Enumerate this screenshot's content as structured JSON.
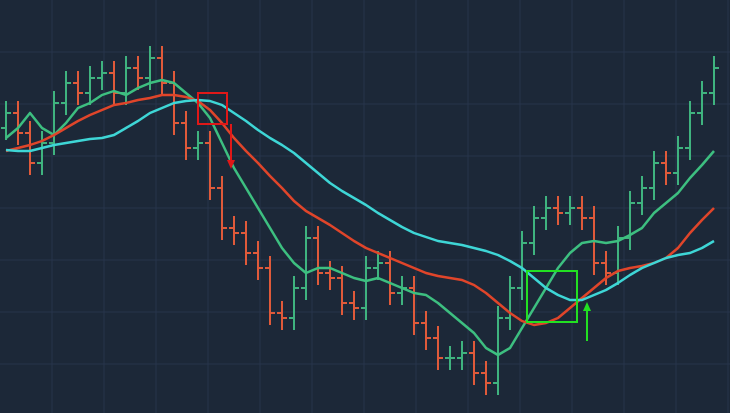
{
  "chart_data": {
    "type": "ohlc",
    "ylim": [
      0,
      413
    ],
    "grid": true,
    "up_color": "#3fb37f",
    "down_color": "#e05a3a",
    "open": [
      285,
      300,
      280,
      250,
      270,
      310,
      330,
      320,
      335,
      340,
      320,
      345,
      335,
      355,
      330,
      290,
      265,
      270,
      225,
      185,
      180,
      160,
      145,
      100,
      95,
      125,
      175,
      140,
      135,
      110,
      105,
      145,
      150,
      120,
      125,
      90,
      75,
      55,
      55,
      60,
      40,
      30,
      95,
      125,
      170,
      195,
      205,
      200,
      205,
      195,
      150,
      140,
      175,
      210,
      225,
      250,
      240,
      265,
      300,
      320
    ],
    "high": [
      312,
      312,
      292,
      282,
      322,
      342,
      342,
      347,
      352,
      352,
      357,
      357,
      367,
      367,
      342,
      302,
      282,
      282,
      237,
      197,
      192,
      172,
      157,
      112,
      137,
      187,
      187,
      152,
      147,
      122,
      157,
      162,
      162,
      137,
      137,
      102,
      87,
      67,
      72,
      72,
      52,
      107,
      137,
      182,
      207,
      217,
      217,
      217,
      217,
      207,
      162,
      187,
      222,
      237,
      262,
      262,
      277,
      312,
      332,
      357
    ],
    "low": [
      273,
      268,
      238,
      238,
      258,
      298,
      308,
      308,
      323,
      308,
      308,
      323,
      323,
      318,
      278,
      253,
      253,
      213,
      173,
      168,
      148,
      133,
      88,
      83,
      83,
      113,
      128,
      123,
      98,
      93,
      93,
      133,
      108,
      108,
      78,
      63,
      43,
      43,
      43,
      28,
      18,
      18,
      83,
      113,
      158,
      183,
      188,
      188,
      183,
      138,
      128,
      128,
      163,
      198,
      213,
      228,
      228,
      253,
      288,
      308
    ],
    "close": [
      300,
      280,
      250,
      270,
      310,
      330,
      320,
      335,
      340,
      320,
      345,
      335,
      355,
      330,
      290,
      265,
      270,
      225,
      185,
      180,
      160,
      145,
      100,
      95,
      125,
      175,
      140,
      135,
      110,
      105,
      145,
      150,
      120,
      125,
      90,
      75,
      55,
      55,
      60,
      40,
      30,
      95,
      125,
      170,
      195,
      205,
      200,
      205,
      195,
      150,
      140,
      175,
      210,
      225,
      250,
      240,
      265,
      300,
      320,
      345
    ],
    "series": [
      {
        "color": "#3dbf80",
        "values": [
          275,
          285,
          300,
          285,
          278,
          290,
          305,
          310,
          318,
          322,
          318,
          325,
          330,
          333,
          330,
          320,
          310,
          295,
          270,
          245,
          225,
          205,
          185,
          165,
          150,
          140,
          145,
          145,
          140,
          135,
          132,
          135,
          130,
          125,
          120,
          118,
          110,
          100,
          90,
          80,
          65,
          58,
          65,
          85,
          105,
          125,
          145,
          160,
          170,
          172,
          170,
          172,
          178,
          185,
          200,
          210,
          220,
          235,
          248,
          262
        ]
      },
      {
        "color": "#e0452a",
        "values": [
          262,
          265,
          268,
          272,
          278,
          285,
          292,
          298,
          303,
          308,
          310,
          313,
          315,
          318,
          318,
          316,
          312,
          303,
          290,
          275,
          262,
          250,
          237,
          225,
          212,
          202,
          195,
          188,
          180,
          172,
          165,
          160,
          155,
          150,
          145,
          140,
          137,
          135,
          133,
          128,
          120,
          110,
          100,
          92,
          88,
          90,
          95,
          105,
          115,
          125,
          135,
          142,
          145,
          147,
          150,
          155,
          165,
          180,
          193,
          205
        ]
      },
      {
        "color": "#3ed6d6",
        "values": [
          263,
          262,
          262,
          265,
          268,
          270,
          272,
          274,
          275,
          278,
          285,
          292,
          300,
          305,
          310,
          312,
          313,
          312,
          308,
          300,
          292,
          283,
          275,
          268,
          260,
          250,
          240,
          230,
          222,
          215,
          208,
          200,
          193,
          186,
          180,
          176,
          172,
          170,
          168,
          165,
          162,
          158,
          152,
          145,
          135,
          125,
          118,
          113,
          113,
          118,
          123,
          130,
          138,
          145,
          150,
          155,
          158,
          160,
          165,
          172
        ]
      }
    ]
  }
}
